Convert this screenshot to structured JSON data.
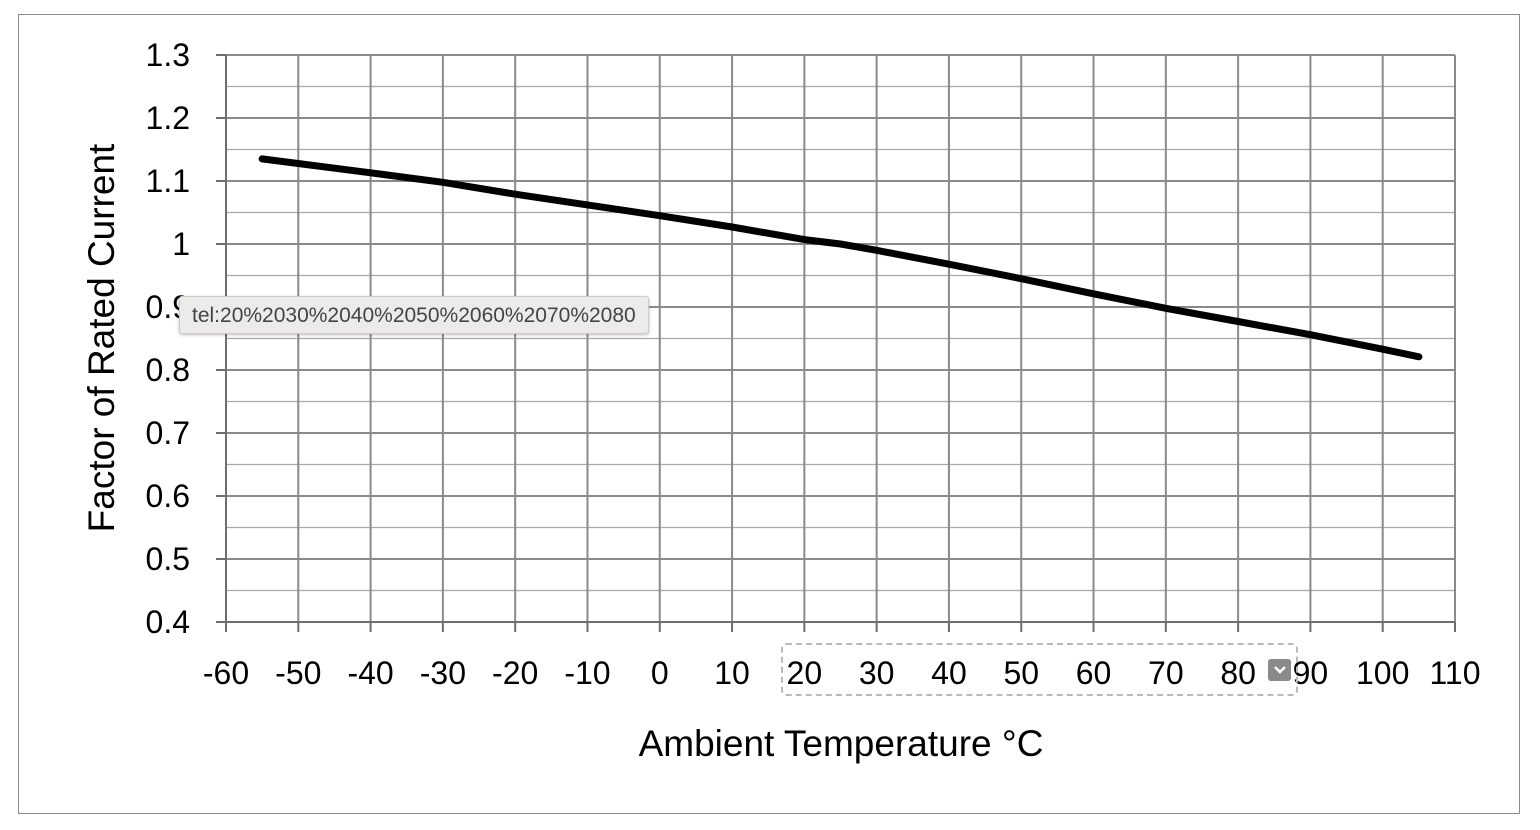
{
  "chart_data": {
    "type": "line",
    "xlabel": "Ambient Temperature °C",
    "ylabel": "Factor of Rated Current",
    "xlim": [
      -60,
      110
    ],
    "ylim": [
      0.4,
      1.3
    ],
    "x_ticks": [
      -60,
      -50,
      -40,
      -30,
      -20,
      -10,
      0,
      10,
      20,
      30,
      40,
      50,
      60,
      70,
      80,
      90,
      100,
      110
    ],
    "y_ticks": [
      "0.4",
      "0.5",
      "0.6",
      "0.7",
      "0.8",
      "0.9",
      "1",
      "1.1",
      "1.2",
      "1.3"
    ],
    "grid": true,
    "series": [
      {
        "x": [
          -55,
          -40,
          -30,
          -20,
          -10,
          0,
          10,
          20,
          25,
          30,
          40,
          50,
          60,
          70,
          80,
          90,
          100,
          105
        ],
        "y": [
          1.135,
          1.113,
          1.098,
          1.079,
          1.062,
          1.045,
          1.027,
          1.007,
          1.0,
          0.99,
          0.968,
          0.945,
          0.921,
          0.898,
          0.877,
          0.856,
          0.833,
          0.821
        ],
        "color": "#000000"
      }
    ]
  },
  "tooltip": {
    "text": "tel:20%2030%2040%2050%2060%2070%2080"
  },
  "selection": {
    "icon": "chevron-down-icon"
  }
}
